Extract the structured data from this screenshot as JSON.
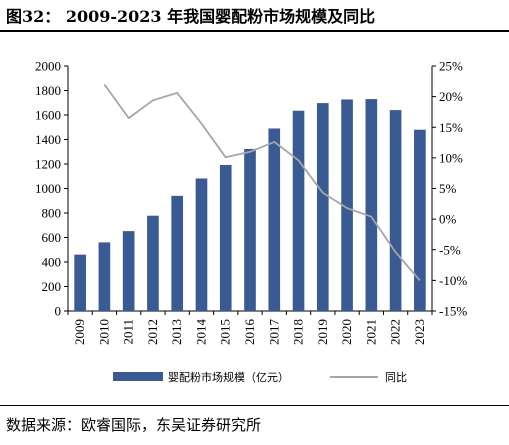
{
  "header": {
    "title": "图32：  2009-2023 年我国婴配粉市场规模及同比"
  },
  "footer": {
    "source": "数据来源：欧睿国际，东吴证券研究所"
  },
  "chart_data": {
    "type": "bar",
    "title": "2009-2023 年我国婴配粉市场规模及同比",
    "categories": [
      "2009",
      "2010",
      "2011",
      "2012",
      "2013",
      "2014",
      "2015",
      "2016",
      "2017",
      "2018",
      "2019",
      "2020",
      "2021",
      "2022",
      "2023"
    ],
    "series": [
      {
        "name": "婴配粉市场规模（亿元）",
        "type": "bar",
        "axis": "left",
        "color": "#3a5a94",
        "values": [
          460,
          560,
          652,
          778,
          940,
          1082,
          1192,
          1323,
          1490,
          1635,
          1697,
          1727,
          1730,
          1640,
          1480
        ]
      },
      {
        "name": "同比",
        "type": "line",
        "axis": "right",
        "color": "#a6a6a6",
        "values": [
          null,
          22.0,
          16.5,
          19.4,
          20.6,
          15.6,
          10.1,
          11.0,
          12.6,
          9.6,
          4.3,
          1.8,
          0.4,
          -5.4,
          -10.0
        ]
      }
    ],
    "y_left": {
      "min": 0,
      "max": 2000,
      "ticks": [
        "0",
        "200",
        "400",
        "600",
        "800",
        "1000",
        "1200",
        "1400",
        "1600",
        "1800",
        "2000"
      ]
    },
    "y_right": {
      "min": -15,
      "max": 25,
      "ticks": [
        "-15%",
        "-10%",
        "-5%",
        "0%",
        "5%",
        "10%",
        "15%",
        "20%",
        "25%"
      ]
    },
    "grid": false,
    "legend_position": "bottom"
  },
  "colors": {
    "bar": "#3a5a94",
    "line": "#a6a6a6",
    "axis": "#000000"
  }
}
